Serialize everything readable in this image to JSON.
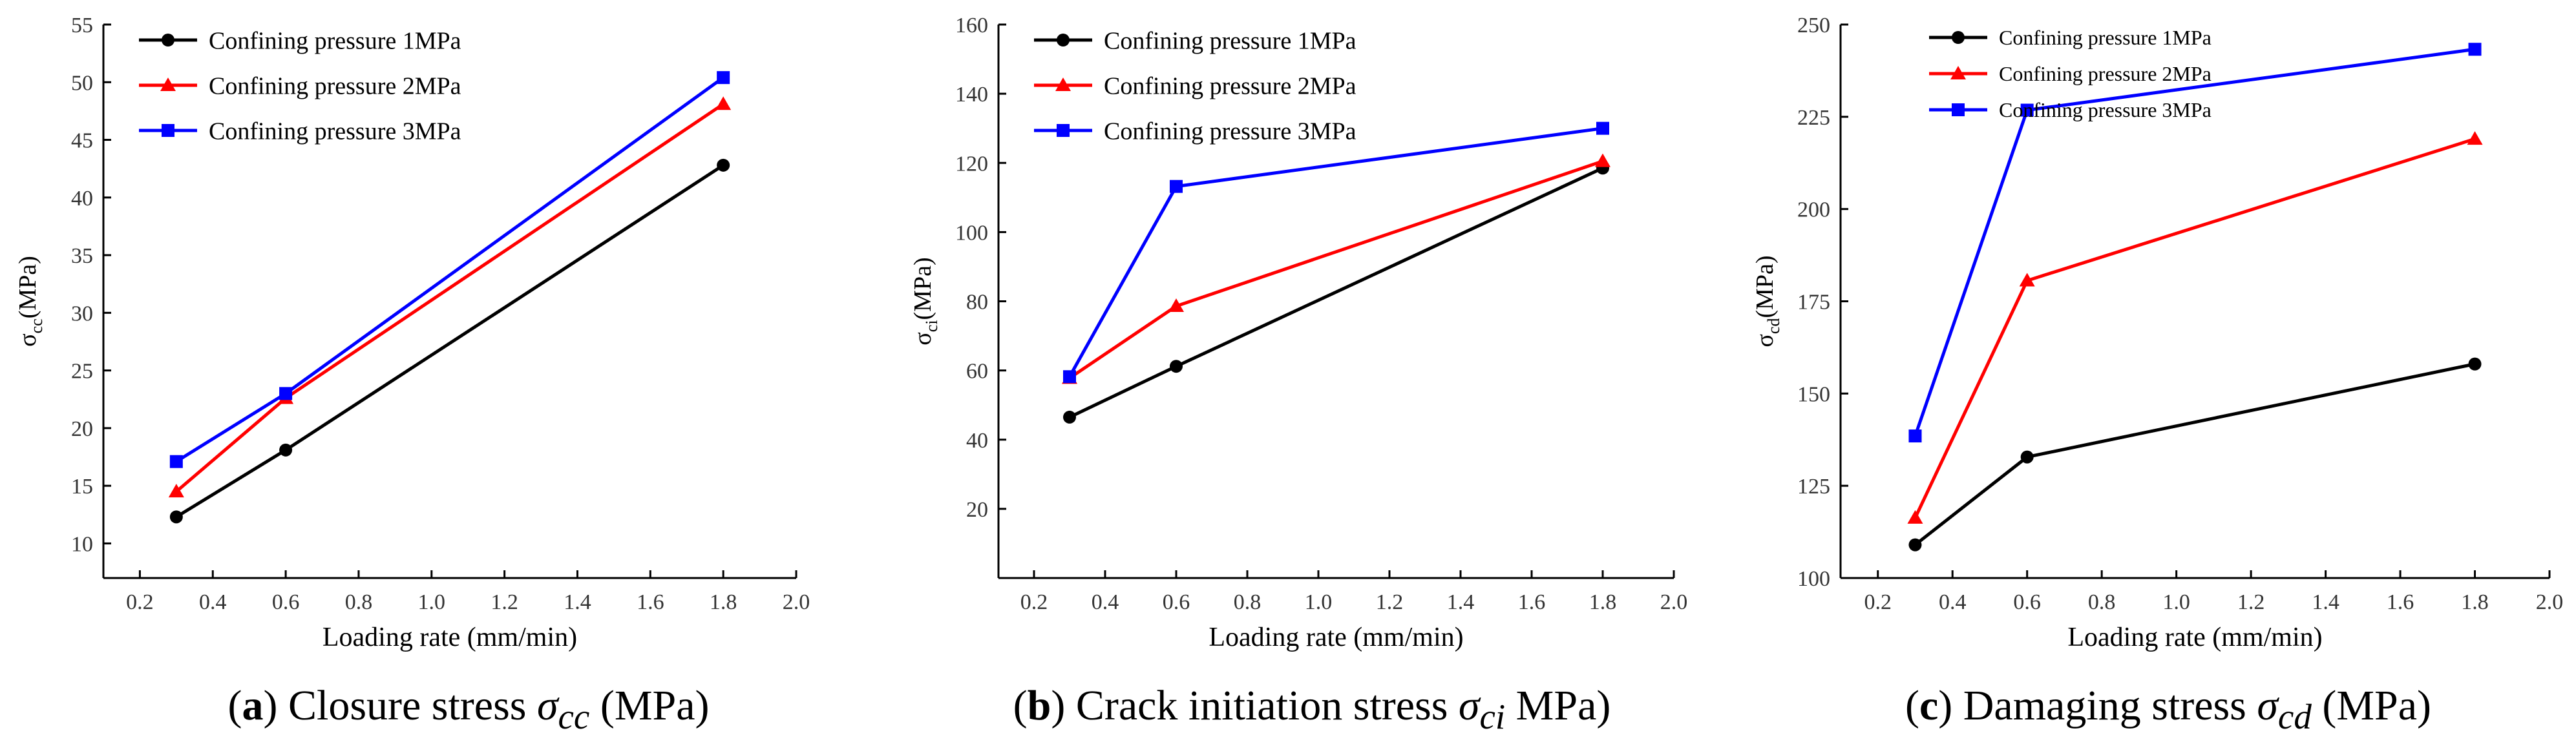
{
  "colors": {
    "s1": "#000000",
    "s2": "#ff0000",
    "s3": "#0000ff",
    "axis": "#000000"
  },
  "chart_data": [
    {
      "type": "line",
      "xlabel": "Loading rate (mm/min)",
      "ylabel_symbol": "σ",
      "ylabel_sub": "cc",
      "ylabel_unit": "(MPa)",
      "xlim": [
        0.1,
        2.0
      ],
      "ylim": [
        7,
        55
      ],
      "xticks": [
        0.2,
        0.4,
        0.6,
        0.8,
        1.0,
        1.2,
        1.4,
        1.6,
        1.8,
        2.0
      ],
      "xtick_labels": [
        "0.2",
        "0.4",
        "0.6",
        "0.8",
        "1.0",
        "1.2",
        "1.4",
        "1.6",
        "1.8",
        "2.0"
      ],
      "yticks": [
        10,
        15,
        20,
        25,
        30,
        35,
        40,
        45,
        50,
        55
      ],
      "ytick_labels": [
        "10",
        "15",
        "20",
        "25",
        "30",
        "35",
        "40",
        "45",
        "50",
        "55"
      ],
      "x": [
        0.3,
        0.6,
        1.8
      ],
      "series": [
        {
          "name": "Confining pressure 1MPa",
          "values": [
            12.3,
            18.1,
            42.8
          ]
        },
        {
          "name": "Confining pressure 2MPa",
          "values": [
            14.5,
            22.6,
            48.1
          ]
        },
        {
          "name": "Confining pressure 3MPa",
          "values": [
            17.1,
            23.0,
            50.4
          ]
        }
      ],
      "caption": {
        "letter": "a",
        "text": "Closure stress ",
        "symbol": "σ",
        "sub": "cc",
        "unit": " (MPa)"
      }
    },
    {
      "type": "line",
      "xlabel": "Loading rate (mm/min)",
      "ylabel_symbol": "σ",
      "ylabel_sub": "ci",
      "ylabel_unit": "(MPa)",
      "xlim": [
        0.1,
        2.0
      ],
      "ylim": [
        0,
        160
      ],
      "xticks": [
        0.2,
        0.4,
        0.6,
        0.8,
        1.0,
        1.2,
        1.4,
        1.6,
        1.8,
        2.0
      ],
      "xtick_labels": [
        "0.2",
        "0.4",
        "0.6",
        "0.8",
        "1.0",
        "1.2",
        "1.4",
        "1.6",
        "1.8",
        "2.0"
      ],
      "yticks": [
        20,
        40,
        60,
        80,
        100,
        120,
        140,
        160
      ],
      "ytick_labels": [
        "20",
        "40",
        "60",
        "80",
        "100",
        "120",
        "140",
        "160"
      ],
      "x": [
        0.3,
        0.6,
        1.8
      ],
      "series": [
        {
          "name": "Confining pressure 1MPa",
          "values": [
            46.5,
            61.2,
            118.5
          ]
        },
        {
          "name": "Confining pressure 2MPa",
          "values": [
            57.8,
            78.6,
            120.5
          ]
        },
        {
          "name": "Confining pressure 3MPa",
          "values": [
            58.2,
            113.2,
            130.0
          ]
        }
      ],
      "caption": {
        "letter": "b",
        "text": "Crack initiation stress ",
        "symbol": "σ",
        "sub": "ci",
        "unit": " MPa)"
      }
    },
    {
      "type": "line",
      "xlabel": "Loading rate (mm/min)",
      "ylabel_symbol": "σ",
      "ylabel_sub": "cd",
      "ylabel_unit": "(MPa)",
      "xlim": [
        0.1,
        2.0
      ],
      "ylim": [
        100,
        250
      ],
      "xticks": [
        0.2,
        0.4,
        0.6,
        0.8,
        1.0,
        1.2,
        1.4,
        1.6,
        1.8,
        2.0
      ],
      "xtick_labels": [
        "0.2",
        "0.4",
        "0.6",
        "0.8",
        "1.0",
        "1.2",
        "1.4",
        "1.6",
        "1.8",
        "2.0"
      ],
      "yticks": [
        100,
        125,
        150,
        175,
        200,
        225,
        250
      ],
      "ytick_labels": [
        "100",
        "125",
        "150",
        "175",
        "200",
        "225",
        "250"
      ],
      "x": [
        0.3,
        0.6,
        1.8
      ],
      "series": [
        {
          "name": "Confining pressure 1MPa",
          "values": [
            109.0,
            132.8,
            158.0
          ]
        },
        {
          "name": "Confining pressure 2MPa",
          "values": [
            116.3,
            180.6,
            219.0
          ]
        },
        {
          "name": "Confining pressure 3MPa",
          "values": [
            138.5,
            226.8,
            243.3
          ]
        }
      ],
      "caption": {
        "letter": "c",
        "text": "Damaging stress ",
        "symbol": "σ",
        "sub": "cd",
        "unit": " (MPa)"
      }
    }
  ]
}
